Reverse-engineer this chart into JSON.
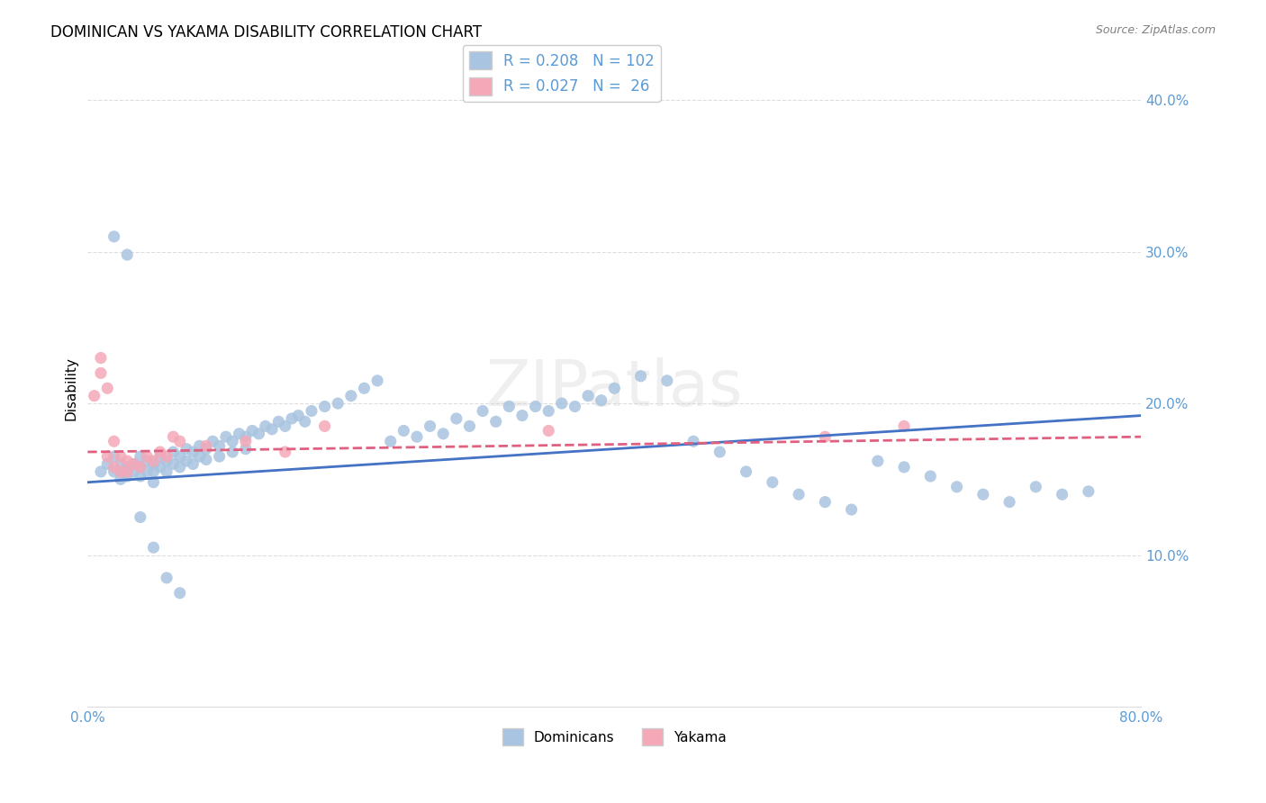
{
  "title": "DOMINICAN VS YAKAMA DISABILITY CORRELATION CHART",
  "source": "Source: ZipAtlas.com",
  "ylabel": "Disability",
  "watermark": "ZIPatlas",
  "xlim": [
    0.0,
    0.8
  ],
  "ylim": [
    0.0,
    0.42
  ],
  "xtick_positions": [
    0.0,
    0.1,
    0.2,
    0.3,
    0.4,
    0.5,
    0.6,
    0.7,
    0.8
  ],
  "xticklabels": [
    "0.0%",
    "",
    "",
    "",
    "",
    "",
    "",
    "",
    "80.0%"
  ],
  "yticks_right": [
    0.1,
    0.2,
    0.3,
    0.4
  ],
  "ytick_labels_right": [
    "10.0%",
    "20.0%",
    "30.0%",
    "40.0%"
  ],
  "blue_color": "#a8c4e0",
  "pink_color": "#f4a8b8",
  "blue_line_color": "#4472c4",
  "pink_line_color": "#e06080",
  "axis_color": "#5b9bd5",
  "legend_R_blue": "0.208",
  "legend_N_blue": "102",
  "legend_R_pink": "0.027",
  "legend_N_pink": "26",
  "grid_color": "#dddddd",
  "background_color": "#ffffff",
  "dominicans_x": [
    0.01,
    0.015,
    0.02,
    0.02,
    0.025,
    0.025,
    0.025,
    0.03,
    0.03,
    0.03,
    0.035,
    0.035,
    0.04,
    0.04,
    0.04,
    0.045,
    0.045,
    0.05,
    0.05,
    0.05,
    0.055,
    0.055,
    0.06,
    0.06,
    0.065,
    0.065,
    0.07,
    0.07,
    0.075,
    0.075,
    0.08,
    0.08,
    0.085,
    0.085,
    0.09,
    0.09,
    0.095,
    0.1,
    0.1,
    0.105,
    0.11,
    0.11,
    0.115,
    0.12,
    0.12,
    0.125,
    0.13,
    0.135,
    0.14,
    0.145,
    0.15,
    0.155,
    0.16,
    0.165,
    0.17,
    0.18,
    0.19,
    0.2,
    0.21,
    0.22,
    0.23,
    0.24,
    0.25,
    0.26,
    0.27,
    0.28,
    0.29,
    0.3,
    0.31,
    0.32,
    0.33,
    0.34,
    0.35,
    0.36,
    0.37,
    0.38,
    0.39,
    0.4,
    0.42,
    0.44,
    0.46,
    0.48,
    0.5,
    0.52,
    0.54,
    0.56,
    0.58,
    0.6,
    0.62,
    0.64,
    0.66,
    0.68,
    0.7,
    0.72,
    0.74,
    0.76,
    0.02,
    0.03,
    0.04,
    0.05,
    0.06,
    0.07
  ],
  "dominicans_y": [
    0.155,
    0.16,
    0.155,
    0.165,
    0.155,
    0.16,
    0.15,
    0.155,
    0.158,
    0.152,
    0.16,
    0.155,
    0.165,
    0.158,
    0.152,
    0.162,
    0.155,
    0.16,
    0.155,
    0.148,
    0.165,
    0.158,
    0.162,
    0.155,
    0.168,
    0.16,
    0.165,
    0.158,
    0.17,
    0.162,
    0.168,
    0.16,
    0.172,
    0.165,
    0.17,
    0.163,
    0.175,
    0.172,
    0.165,
    0.178,
    0.175,
    0.168,
    0.18,
    0.178,
    0.17,
    0.182,
    0.18,
    0.185,
    0.183,
    0.188,
    0.185,
    0.19,
    0.192,
    0.188,
    0.195,
    0.198,
    0.2,
    0.205,
    0.21,
    0.215,
    0.175,
    0.182,
    0.178,
    0.185,
    0.18,
    0.19,
    0.185,
    0.195,
    0.188,
    0.198,
    0.192,
    0.198,
    0.195,
    0.2,
    0.198,
    0.205,
    0.202,
    0.21,
    0.218,
    0.215,
    0.175,
    0.168,
    0.155,
    0.148,
    0.14,
    0.135,
    0.13,
    0.162,
    0.158,
    0.152,
    0.145,
    0.14,
    0.135,
    0.145,
    0.14,
    0.142,
    0.31,
    0.298,
    0.125,
    0.105,
    0.085,
    0.075
  ],
  "yakama_x": [
    0.005,
    0.01,
    0.01,
    0.015,
    0.015,
    0.02,
    0.02,
    0.025,
    0.025,
    0.03,
    0.03,
    0.035,
    0.04,
    0.045,
    0.05,
    0.055,
    0.06,
    0.065,
    0.07,
    0.09,
    0.12,
    0.15,
    0.18,
    0.35,
    0.56,
    0.62
  ],
  "yakama_y": [
    0.205,
    0.22,
    0.23,
    0.21,
    0.165,
    0.175,
    0.158,
    0.165,
    0.155,
    0.162,
    0.155,
    0.16,
    0.158,
    0.165,
    0.162,
    0.168,
    0.165,
    0.178,
    0.175,
    0.172,
    0.175,
    0.168,
    0.185,
    0.182,
    0.178,
    0.185
  ],
  "blue_trend_x": [
    0.0,
    0.8
  ],
  "blue_trend_y": [
    0.148,
    0.192
  ],
  "pink_trend_x": [
    0.0,
    0.8
  ],
  "pink_trend_y": [
    0.168,
    0.178
  ]
}
